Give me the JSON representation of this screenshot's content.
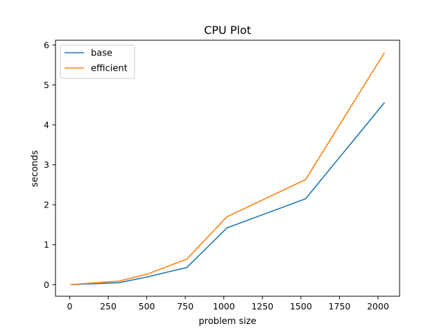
{
  "chart_data": {
    "type": "line",
    "title": "CPU Plot",
    "xlabel": "problem size",
    "ylabel": "seconds",
    "xlim": [
      -92,
      2140
    ],
    "ylim": [
      -0.29,
      6.12
    ],
    "xticks": [
      0,
      250,
      500,
      750,
      1000,
      1250,
      1500,
      1750,
      2000
    ],
    "yticks": [
      0,
      1,
      2,
      3,
      4,
      5,
      6
    ],
    "grid": false,
    "legend_position": "top-left",
    "series": [
      {
        "name": "base",
        "color": "#1f77b4",
        "x": [
          10,
          320,
          500,
          760,
          1020,
          1530,
          2040
        ],
        "y": [
          0.0,
          0.05,
          0.19,
          0.43,
          1.42,
          2.15,
          4.55
        ]
      },
      {
        "name": "efficient",
        "color": "#ff7f0e",
        "x": [
          10,
          320,
          500,
          760,
          1020,
          1530,
          2040
        ],
        "y": [
          0.0,
          0.09,
          0.26,
          0.64,
          1.7,
          2.63,
          5.8
        ]
      }
    ]
  }
}
